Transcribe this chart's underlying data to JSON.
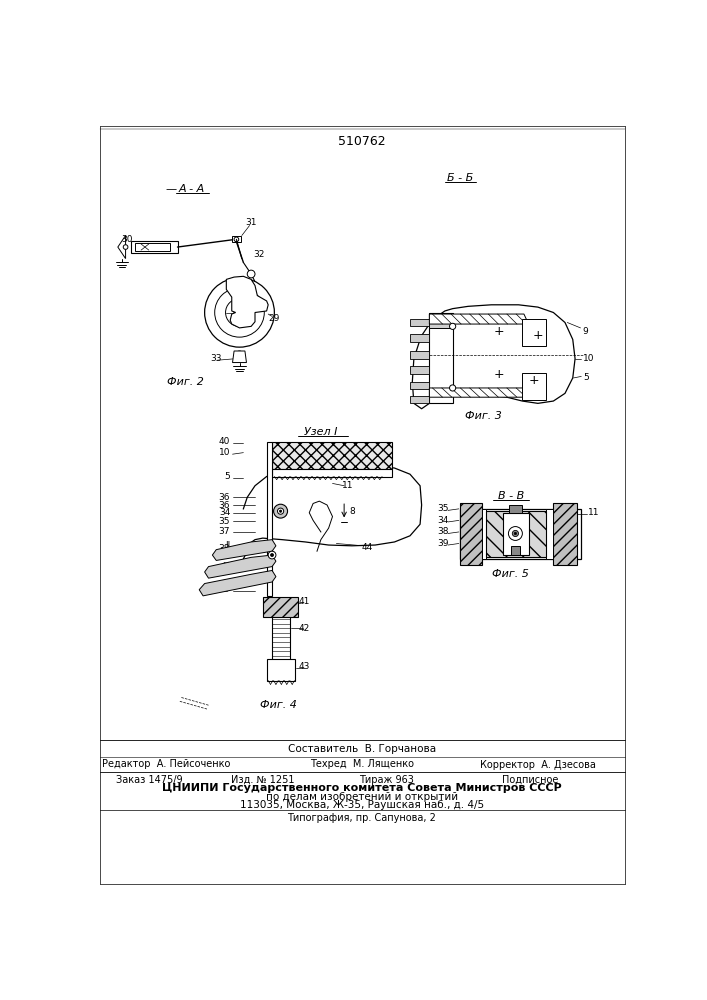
{
  "patent_number": "510762",
  "bg_color": "#ffffff",
  "line_color": "#000000",
  "footer": {
    "composer": "Составитель  В. Горчанова",
    "editor": "Редактор  А. Пейсоченко",
    "tech_editor": "Техред  М. Лященко",
    "corrector": "Корректор  А. Дзесова",
    "order": "Заказ 1475/9",
    "edition": "Изд. № 1251",
    "circulation": "Тираж 963",
    "subscription": "Подписное",
    "org_line1": "ЦНИИПИ Государственного комитета Совета Министров СССР",
    "org_line2": "по делам изобретений и открытий",
    "org_line3": "113035, Москва, Ж-35, Раушская наб., д. 4/5",
    "typography": "Типография, пр. Сапунова, 2"
  },
  "fig2_label": "Фиг. 2",
  "fig3_label": "Фиг. 3",
  "fig4_label": "Фиг. 4",
  "fig5_label": "Фиг. 5",
  "section_aa": "А - А",
  "section_bb": "Б - Б",
  "section_vv": "В - В",
  "node1": "Узел I"
}
